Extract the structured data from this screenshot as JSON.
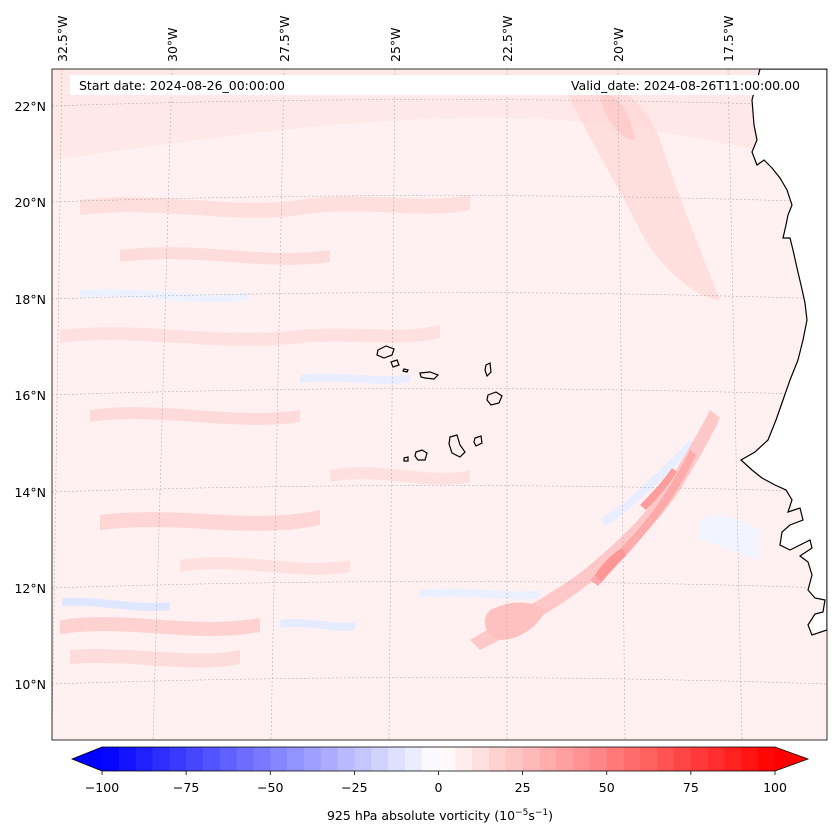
{
  "header": {
    "start_date": "Start date: 2024-08-26_00:00:00",
    "valid_date": "Valid_date: 2024-08-26T11:00:00.00"
  },
  "longitude_ticks": [
    "32.5°W",
    "30°W",
    "27.5°W",
    "25°W",
    "22.5°W",
    "20°W",
    "17.5°W"
  ],
  "latitude_ticks": [
    "22°N",
    "20°N",
    "18°N",
    "16°N",
    "14°N",
    "12°N",
    "10°N"
  ],
  "colorbar": {
    "label": "925 hPa absolute vorticity (10",
    "label_exp1": "−5",
    "label_mid": "s",
    "label_exp2": "−1",
    "label_end": ")",
    "ticks": [
      "−100",
      "−75",
      "−50",
      "−25",
      "0",
      "25",
      "50",
      "75",
      "100"
    ],
    "min": -100,
    "max": 100,
    "step": 5,
    "low_color": "#0000ff",
    "mid_color": "#ffffff",
    "high_color": "#ff0000"
  },
  "colors": {
    "coastline": "#000000",
    "gridline": "#b0b0b0",
    "ocean_base": "#fff1f1"
  }
}
